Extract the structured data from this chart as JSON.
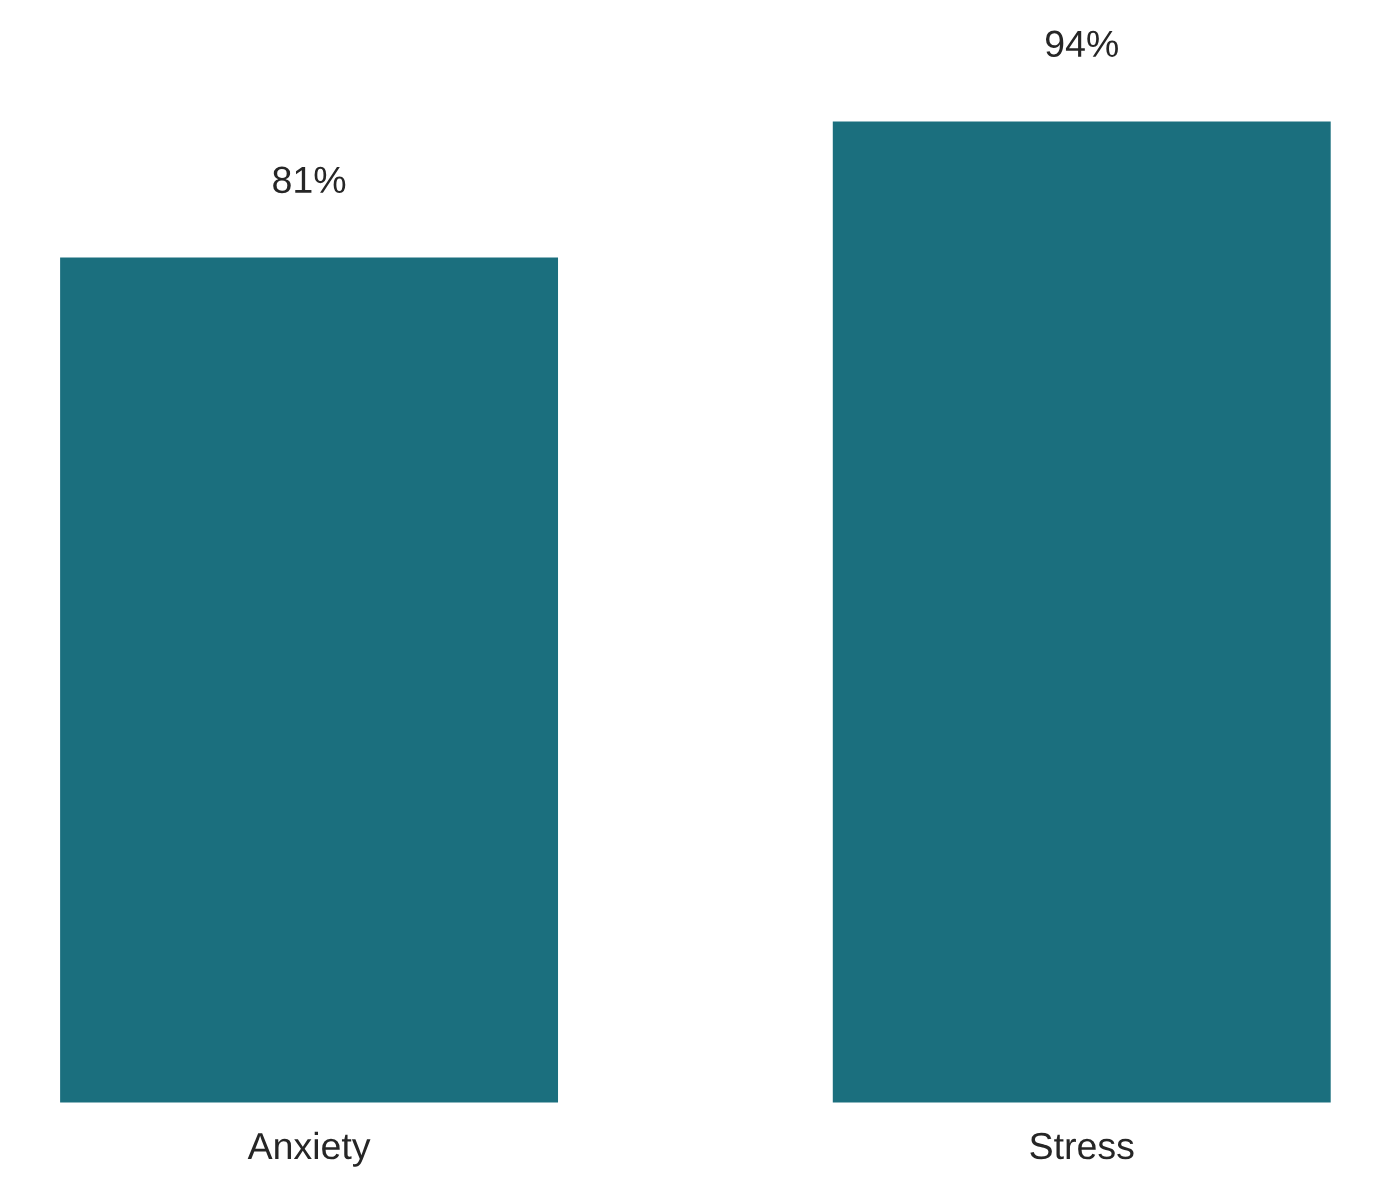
{
  "chart_data": {
    "type": "bar",
    "categories": [
      "Anxiety",
      "Stress"
    ],
    "values": [
      81,
      94
    ],
    "value_labels": [
      "81%",
      "94%"
    ],
    "color": "#1b6f7e",
    "grid": false,
    "legend": false
  }
}
